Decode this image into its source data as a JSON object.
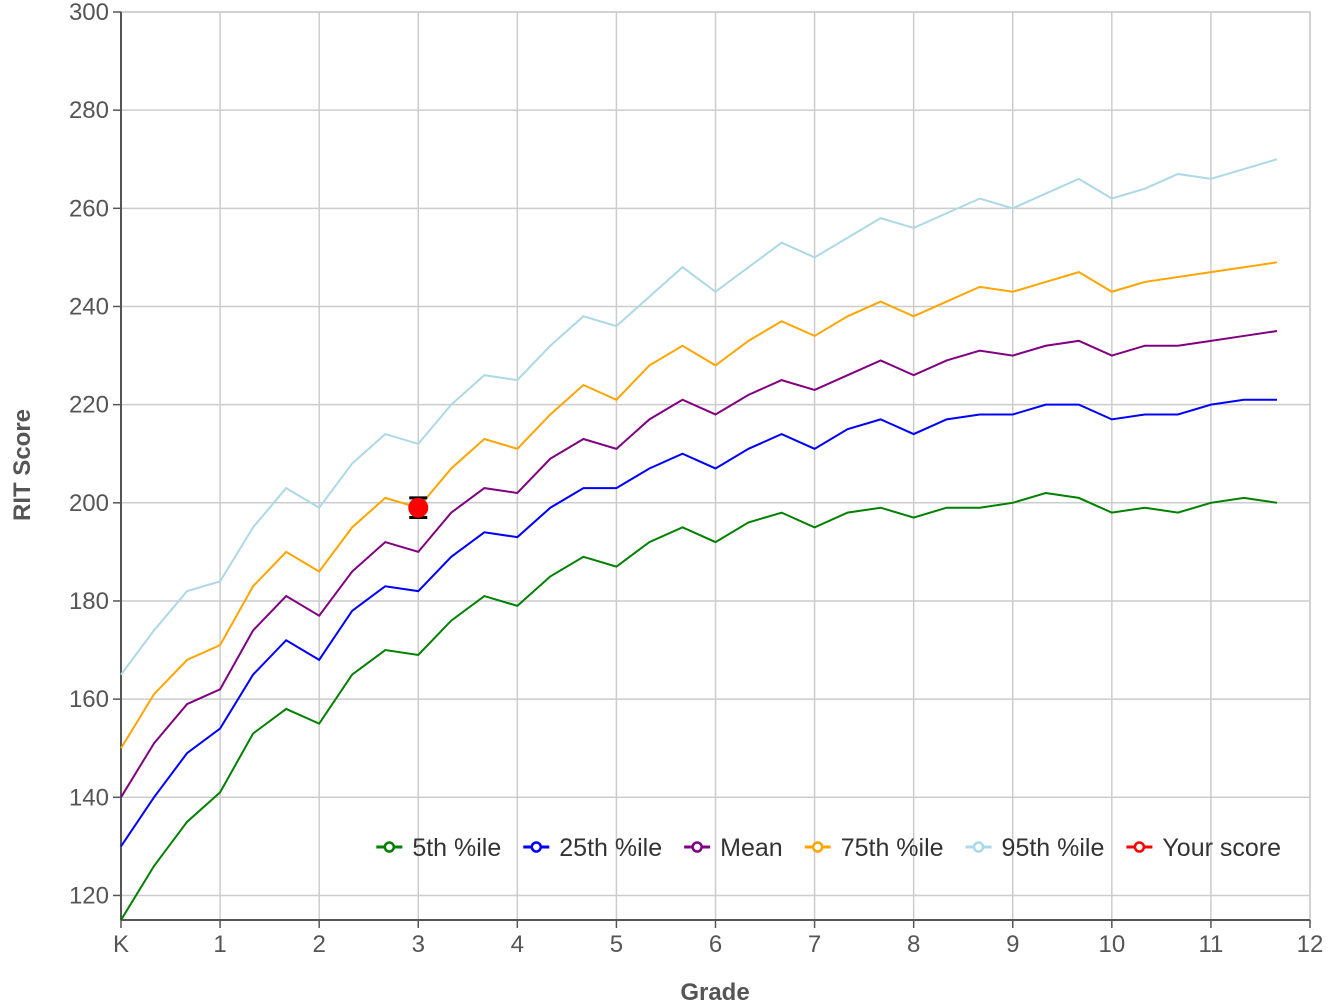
{
  "chart_data": {
    "type": "line",
    "title": "",
    "xlabel": "Grade",
    "ylabel": "RIT Score",
    "xlim": [
      0,
      12
    ],
    "ylim": [
      115,
      300
    ],
    "x_ticks": [
      "K",
      "1",
      "2",
      "3",
      "4",
      "5",
      "6",
      "7",
      "8",
      "9",
      "10",
      "11",
      "12"
    ],
    "y_ticks": [
      120,
      140,
      160,
      180,
      200,
      220,
      240,
      260,
      280,
      300
    ],
    "grid": true,
    "legend_position": "bottom-right",
    "x": [
      0,
      0.333,
      0.667,
      1,
      1.333,
      1.667,
      2,
      2.333,
      2.667,
      3,
      3.333,
      3.667,
      4,
      4.333,
      4.667,
      5,
      5.333,
      5.667,
      6,
      6.333,
      6.667,
      7,
      7.333,
      7.667,
      8,
      8.333,
      8.667,
      9,
      9.333,
      9.667,
      10,
      10.333,
      10.667,
      11,
      11.333,
      11.667
    ],
    "series": [
      {
        "name": "5th %ile",
        "color": "#008000",
        "values": [
          115,
          126,
          135,
          141,
          153,
          158,
          155,
          165,
          170,
          169,
          176,
          181,
          179,
          185,
          189,
          187,
          192,
          195,
          192,
          196,
          198,
          195,
          198,
          199,
          197,
          199,
          199,
          200,
          202,
          201,
          198,
          199,
          198,
          200,
          201,
          200
        ]
      },
      {
        "name": "25th %ile",
        "color": "#0000ff",
        "values": [
          130,
          140,
          149,
          154,
          165,
          172,
          168,
          178,
          183,
          182,
          189,
          194,
          193,
          199,
          203,
          203,
          207,
          210,
          207,
          211,
          214,
          211,
          215,
          217,
          214,
          217,
          218,
          218,
          220,
          220,
          217,
          218,
          218,
          220,
          221,
          221
        ]
      },
      {
        "name": "Mean",
        "color": "#800080",
        "values": [
          140,
          151,
          159,
          162,
          174,
          181,
          177,
          186,
          192,
          190,
          198,
          203,
          202,
          209,
          213,
          211,
          217,
          221,
          218,
          222,
          225,
          223,
          226,
          229,
          226,
          229,
          231,
          230,
          232,
          233,
          230,
          232,
          232,
          233,
          234,
          235
        ]
      },
      {
        "name": "75th %ile",
        "color": "#ffa500",
        "values": [
          150,
          161,
          168,
          171,
          183,
          190,
          186,
          195,
          201,
          199,
          207,
          213,
          211,
          218,
          224,
          221,
          228,
          232,
          228,
          233,
          237,
          234,
          238,
          241,
          238,
          241,
          244,
          243,
          245,
          247,
          243,
          245,
          246,
          247,
          248,
          249
        ]
      },
      {
        "name": "95th %ile",
        "color": "#add8e6",
        "values": [
          165,
          174,
          182,
          184,
          195,
          203,
          199,
          208,
          214,
          212,
          220,
          226,
          225,
          232,
          238,
          236,
          242,
          248,
          243,
          248,
          253,
          250,
          254,
          258,
          256,
          259,
          262,
          260,
          263,
          266,
          262,
          264,
          267,
          266,
          268,
          270
        ]
      }
    ],
    "points": [
      {
        "name": "Your score",
        "color": "#ff0000",
        "x": 3,
        "y": 199,
        "error": 2
      }
    ]
  }
}
